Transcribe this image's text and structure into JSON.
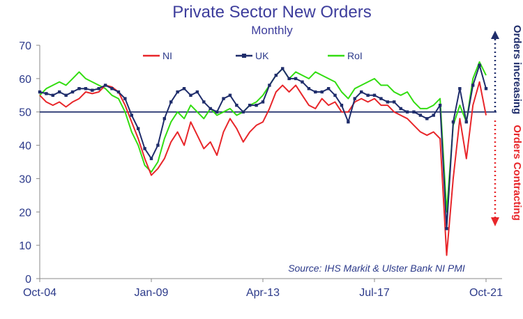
{
  "chart_data": {
    "type": "line",
    "title": "Private Sector New Orders",
    "subtitle": "Monthly",
    "x_tick_labels": [
      "Oct-04",
      "Jan-09",
      "Apr-13",
      "Jul-17",
      "Oct-21"
    ],
    "x_range": [
      2004.75,
      2021.75
    ],
    "y_ticks": [
      0,
      10,
      20,
      30,
      40,
      50,
      60,
      70
    ],
    "ylim": [
      0,
      70
    ],
    "reference_line": 50,
    "grid": false,
    "legend_position": "top",
    "annotations": {
      "up": "Orders increasing",
      "down": "Orders Contracting",
      "source": "Source: IHS Markit & Ulster Bank NI PMI"
    },
    "series": [
      {
        "name": "NI",
        "color": "#e8262a",
        "marker": "none",
        "points": [
          [
            2004.75,
            55
          ],
          [
            2005.0,
            53
          ],
          [
            2005.25,
            52
          ],
          [
            2005.5,
            53
          ],
          [
            2005.75,
            51.5
          ],
          [
            2006.0,
            53
          ],
          [
            2006.25,
            54
          ],
          [
            2006.5,
            56
          ],
          [
            2006.75,
            55.5
          ],
          [
            2007.0,
            56
          ],
          [
            2007.25,
            58
          ],
          [
            2007.5,
            57.5
          ],
          [
            2007.75,
            56
          ],
          [
            2008.0,
            52
          ],
          [
            2008.25,
            47
          ],
          [
            2008.5,
            42
          ],
          [
            2008.75,
            36
          ],
          [
            2009.0,
            31
          ],
          [
            2009.25,
            33
          ],
          [
            2009.5,
            36
          ],
          [
            2009.75,
            41
          ],
          [
            2010.0,
            44
          ],
          [
            2010.25,
            40
          ],
          [
            2010.5,
            47
          ],
          [
            2010.75,
            43
          ],
          [
            2011.0,
            39
          ],
          [
            2011.25,
            41
          ],
          [
            2011.5,
            37
          ],
          [
            2011.75,
            44
          ],
          [
            2012.0,
            48
          ],
          [
            2012.25,
            45
          ],
          [
            2012.5,
            41
          ],
          [
            2012.75,
            44
          ],
          [
            2013.0,
            46
          ],
          [
            2013.25,
            47
          ],
          [
            2013.5,
            51
          ],
          [
            2013.75,
            56
          ],
          [
            2014.0,
            58
          ],
          [
            2014.25,
            56
          ],
          [
            2014.5,
            58
          ],
          [
            2014.75,
            55
          ],
          [
            2015.0,
            52
          ],
          [
            2015.25,
            51
          ],
          [
            2015.5,
            54
          ],
          [
            2015.75,
            52
          ],
          [
            2016.0,
            53
          ],
          [
            2016.25,
            50
          ],
          [
            2016.5,
            50
          ],
          [
            2016.75,
            53
          ],
          [
            2017.0,
            54
          ],
          [
            2017.25,
            53
          ],
          [
            2017.5,
            54
          ],
          [
            2017.75,
            52
          ],
          [
            2018.0,
            52
          ],
          [
            2018.25,
            50
          ],
          [
            2018.5,
            49
          ],
          [
            2018.75,
            48
          ],
          [
            2019.0,
            46
          ],
          [
            2019.25,
            44
          ],
          [
            2019.5,
            43
          ],
          [
            2019.75,
            44
          ],
          [
            2020.0,
            42
          ],
          [
            2020.25,
            7
          ],
          [
            2020.5,
            30
          ],
          [
            2020.75,
            48
          ],
          [
            2021.0,
            36
          ],
          [
            2021.25,
            52
          ],
          [
            2021.5,
            59
          ],
          [
            2021.75,
            49
          ]
        ]
      },
      {
        "name": "UK",
        "color": "#1f2d6b",
        "marker": "square",
        "points": [
          [
            2004.75,
            56
          ],
          [
            2005.0,
            55.5
          ],
          [
            2005.25,
            55
          ],
          [
            2005.5,
            56
          ],
          [
            2005.75,
            55
          ],
          [
            2006.0,
            56
          ],
          [
            2006.25,
            57
          ],
          [
            2006.5,
            57
          ],
          [
            2006.75,
            56.5
          ],
          [
            2007.0,
            57
          ],
          [
            2007.25,
            58
          ],
          [
            2007.5,
            57
          ],
          [
            2007.75,
            56
          ],
          [
            2008.0,
            54
          ],
          [
            2008.25,
            49
          ],
          [
            2008.5,
            45
          ],
          [
            2008.75,
            39
          ],
          [
            2009.0,
            36
          ],
          [
            2009.25,
            40
          ],
          [
            2009.5,
            48
          ],
          [
            2009.75,
            53
          ],
          [
            2010.0,
            56
          ],
          [
            2010.25,
            57
          ],
          [
            2010.5,
            55
          ],
          [
            2010.75,
            56
          ],
          [
            2011.0,
            53
          ],
          [
            2011.25,
            51
          ],
          [
            2011.5,
            50
          ],
          [
            2011.75,
            54
          ],
          [
            2012.0,
            55
          ],
          [
            2012.25,
            52
          ],
          [
            2012.5,
            50
          ],
          [
            2012.75,
            52
          ],
          [
            2013.0,
            52
          ],
          [
            2013.25,
            53
          ],
          [
            2013.5,
            58
          ],
          [
            2013.75,
            61
          ],
          [
            2014.0,
            63
          ],
          [
            2014.25,
            60
          ],
          [
            2014.5,
            60
          ],
          [
            2014.75,
            59
          ],
          [
            2015.0,
            57
          ],
          [
            2015.25,
            56
          ],
          [
            2015.5,
            56
          ],
          [
            2015.75,
            57
          ],
          [
            2016.0,
            55
          ],
          [
            2016.25,
            52
          ],
          [
            2016.5,
            47
          ],
          [
            2016.75,
            54
          ],
          [
            2017.0,
            56
          ],
          [
            2017.25,
            55
          ],
          [
            2017.5,
            55
          ],
          [
            2017.75,
            54
          ],
          [
            2018.0,
            53
          ],
          [
            2018.25,
            53
          ],
          [
            2018.5,
            51
          ],
          [
            2018.75,
            50
          ],
          [
            2019.0,
            50
          ],
          [
            2019.25,
            49
          ],
          [
            2019.5,
            48
          ],
          [
            2019.75,
            49
          ],
          [
            2020.0,
            52
          ],
          [
            2020.25,
            15
          ],
          [
            2020.5,
            47
          ],
          [
            2020.75,
            57
          ],
          [
            2021.0,
            47
          ],
          [
            2021.25,
            58
          ],
          [
            2021.5,
            64
          ],
          [
            2021.75,
            57
          ]
        ]
      },
      {
        "name": "RoI",
        "color": "#33dd11",
        "marker": "none",
        "points": [
          [
            2004.75,
            55
          ],
          [
            2005.0,
            57
          ],
          [
            2005.25,
            58
          ],
          [
            2005.5,
            59
          ],
          [
            2005.75,
            58
          ],
          [
            2006.0,
            60
          ],
          [
            2006.25,
            62
          ],
          [
            2006.5,
            60
          ],
          [
            2006.75,
            59
          ],
          [
            2007.0,
            58
          ],
          [
            2007.25,
            57
          ],
          [
            2007.5,
            55
          ],
          [
            2007.75,
            54
          ],
          [
            2008.0,
            50
          ],
          [
            2008.25,
            44
          ],
          [
            2008.5,
            40
          ],
          [
            2008.75,
            34
          ],
          [
            2009.0,
            32
          ],
          [
            2009.25,
            35
          ],
          [
            2009.5,
            42
          ],
          [
            2009.75,
            47
          ],
          [
            2010.0,
            50
          ],
          [
            2010.25,
            48
          ],
          [
            2010.5,
            52
          ],
          [
            2010.75,
            50
          ],
          [
            2011.0,
            48
          ],
          [
            2011.25,
            51
          ],
          [
            2011.5,
            49
          ],
          [
            2011.75,
            50
          ],
          [
            2012.0,
            51
          ],
          [
            2012.25,
            49
          ],
          [
            2012.5,
            50
          ],
          [
            2012.75,
            52
          ],
          [
            2013.0,
            53
          ],
          [
            2013.25,
            55
          ],
          [
            2013.5,
            58
          ],
          [
            2013.75,
            61
          ],
          [
            2014.0,
            63
          ],
          [
            2014.25,
            60
          ],
          [
            2014.5,
            62
          ],
          [
            2014.75,
            61
          ],
          [
            2015.0,
            60
          ],
          [
            2015.25,
            62
          ],
          [
            2015.5,
            61
          ],
          [
            2015.75,
            60
          ],
          [
            2016.0,
            59
          ],
          [
            2016.25,
            56
          ],
          [
            2016.5,
            54
          ],
          [
            2016.75,
            57
          ],
          [
            2017.0,
            58
          ],
          [
            2017.25,
            59
          ],
          [
            2017.5,
            60
          ],
          [
            2017.75,
            58
          ],
          [
            2018.0,
            58
          ],
          [
            2018.25,
            56
          ],
          [
            2018.5,
            55
          ],
          [
            2018.75,
            56
          ],
          [
            2019.0,
            53
          ],
          [
            2019.25,
            51
          ],
          [
            2019.5,
            51
          ],
          [
            2019.75,
            52
          ],
          [
            2020.0,
            54
          ],
          [
            2020.25,
            20
          ],
          [
            2020.5,
            46
          ],
          [
            2020.75,
            52
          ],
          [
            2021.0,
            47
          ],
          [
            2021.25,
            60
          ],
          [
            2021.5,
            65
          ],
          [
            2021.75,
            61
          ]
        ]
      }
    ]
  }
}
